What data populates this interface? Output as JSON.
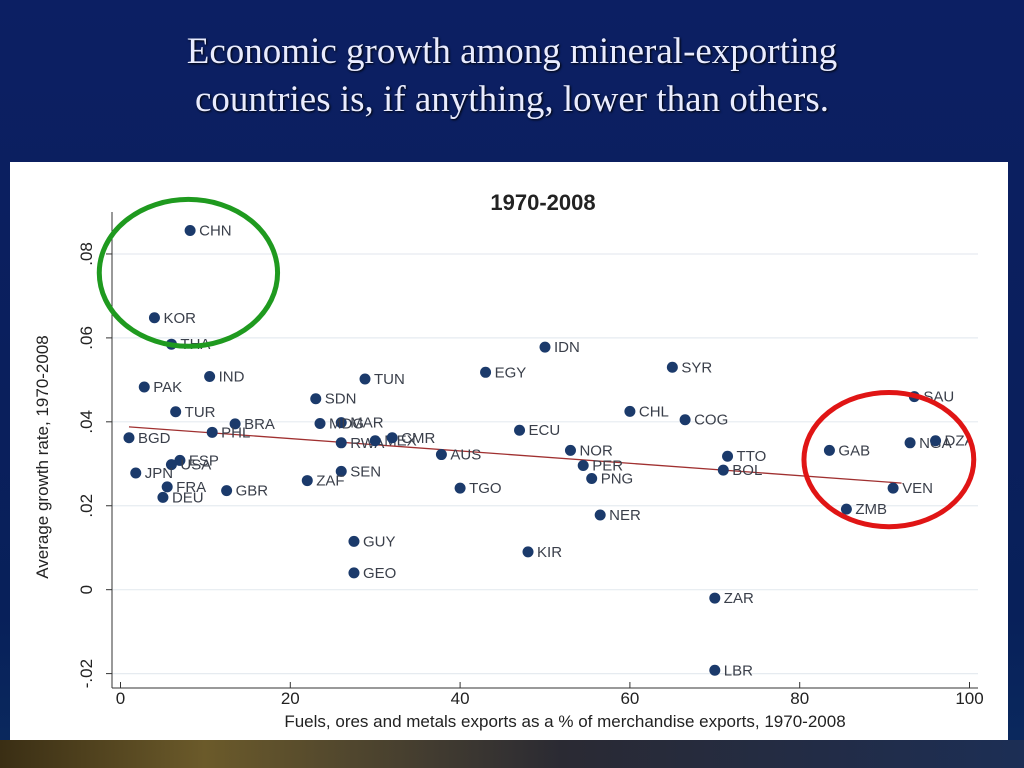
{
  "slide": {
    "title_line1": "Economic growth among mineral-exporting",
    "title_line2": "countries is, if anything, lower than others."
  },
  "colors": {
    "background": "#0c1f63",
    "point": "#1b3a6b",
    "fit_line": "#a03030",
    "circle_green": "#1f9a1f",
    "circle_red": "#e01515"
  },
  "chart_data": {
    "type": "scatter",
    "title": "1970-2008",
    "xlabel": "Fuels, ores and metals exports as a % of merchandise exports, 1970-2008",
    "ylabel": "Average growth rate, 1970-2008",
    "xlim": [
      -1,
      101
    ],
    "ylim": [
      -0.022,
      0.09
    ],
    "xticks": [
      0,
      20,
      40,
      60,
      80,
      100
    ],
    "yticks": [
      -0.02,
      0,
      0.02,
      0.04,
      0.06,
      0.08
    ],
    "ytick_labels": [
      "-.02",
      "0",
      ".02",
      ".04",
      ".06",
      ".08"
    ],
    "xtick_labels": [
      "0",
      "20",
      "40",
      "60",
      "80",
      "100"
    ],
    "grid": true,
    "fit_line": {
      "x": [
        1,
        92
      ],
      "y": [
        0.0388,
        0.0254
      ]
    },
    "points": [
      {
        "label": "CHN",
        "x": 8.2,
        "y": 0.0856
      },
      {
        "label": "KOR",
        "x": 4.0,
        "y": 0.0648
      },
      {
        "label": "THA",
        "x": 6.0,
        "y": 0.0585
      },
      {
        "label": "PAK",
        "x": 2.8,
        "y": 0.0483
      },
      {
        "label": "IND",
        "x": 10.5,
        "y": 0.0508
      },
      {
        "label": "TUR",
        "x": 6.5,
        "y": 0.0424
      },
      {
        "label": "BGD",
        "x": 1.0,
        "y": 0.0362
      },
      {
        "label": "BRA",
        "x": 13.5,
        "y": 0.0395
      },
      {
        "label": "PHL",
        "x": 10.8,
        "y": 0.0375
      },
      {
        "label": "ESP",
        "x": 7.0,
        "y": 0.0308
      },
      {
        "label": "USA",
        "x": 6.0,
        "y": 0.0298
      },
      {
        "label": "JPN",
        "x": 1.8,
        "y": 0.0278
      },
      {
        "label": "FRA",
        "x": 5.5,
        "y": 0.0245
      },
      {
        "label": "DEU",
        "x": 5.0,
        "y": 0.022
      },
      {
        "label": "GBR",
        "x": 12.5,
        "y": 0.0236
      },
      {
        "label": "TUN",
        "x": 28.8,
        "y": 0.0502
      },
      {
        "label": "SDN",
        "x": 23.0,
        "y": 0.0455
      },
      {
        "label": "IDN",
        "x": 50.0,
        "y": 0.0578
      },
      {
        "label": "EGY",
        "x": 43.0,
        "y": 0.0518
      },
      {
        "label": "MAR",
        "x": 26.0,
        "y": 0.0398
      },
      {
        "label": "MDG",
        "x": 23.5,
        "y": 0.0396
      },
      {
        "label": "RWA",
        "x": 26.0,
        "y": 0.035
      },
      {
        "label": "MEX",
        "x": 30.0,
        "y": 0.0355
      },
      {
        "label": "CMR",
        "x": 32.0,
        "y": 0.0362
      },
      {
        "label": "SEN",
        "x": 26.0,
        "y": 0.0282
      },
      {
        "label": "ZAF",
        "x": 22.0,
        "y": 0.026
      },
      {
        "label": "AUS",
        "x": 37.8,
        "y": 0.0322
      },
      {
        "label": "ECU",
        "x": 47.0,
        "y": 0.038
      },
      {
        "label": "TGO",
        "x": 40.0,
        "y": 0.0242
      },
      {
        "label": "GUY",
        "x": 27.5,
        "y": 0.0115
      },
      {
        "label": "GEO",
        "x": 27.5,
        "y": 0.004
      },
      {
        "label": "KIR",
        "x": 48.0,
        "y": 0.009
      },
      {
        "label": "SYR",
        "x": 65.0,
        "y": 0.053
      },
      {
        "label": "CHL",
        "x": 60.0,
        "y": 0.0425
      },
      {
        "label": "COG",
        "x": 66.5,
        "y": 0.0405
      },
      {
        "label": "NOR",
        "x": 53.0,
        "y": 0.0332
      },
      {
        "label": "PER",
        "x": 54.5,
        "y": 0.0296
      },
      {
        "label": "PNG",
        "x": 55.5,
        "y": 0.0265
      },
      {
        "label": "NER",
        "x": 56.5,
        "y": 0.0178
      },
      {
        "label": "TTO",
        "x": 71.5,
        "y": 0.0318
      },
      {
        "label": "BOL",
        "x": 71.0,
        "y": 0.0285
      },
      {
        "label": "ZAR",
        "x": 70.0,
        "y": -0.002
      },
      {
        "label": "LBR",
        "x": 70.0,
        "y": -0.0192
      },
      {
        "label": "GAB",
        "x": 83.5,
        "y": 0.0332
      },
      {
        "label": "SAU",
        "x": 93.5,
        "y": 0.046
      },
      {
        "label": "NGA",
        "x": 93.0,
        "y": 0.035
      },
      {
        "label": "DZA",
        "x": 96.0,
        "y": 0.0355
      },
      {
        "label": "VEN",
        "x": 91.0,
        "y": 0.0242
      },
      {
        "label": "ZMB",
        "x": 85.5,
        "y": 0.0192
      }
    ],
    "highlight_circles": [
      {
        "color": "green",
        "cx": 8.0,
        "cy": 0.0755,
        "rx": 10.5,
        "ry": 0.0175
      },
      {
        "color": "red",
        "cx": 90.5,
        "cy": 0.031,
        "rx": 10.0,
        "ry": 0.016
      }
    ]
  }
}
